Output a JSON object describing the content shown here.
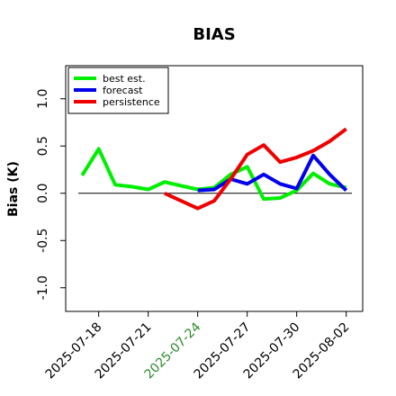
{
  "chart_data": {
    "type": "line",
    "title": "BIAS",
    "xlabel": "",
    "ylabel": "Bias (K)",
    "ylim": [
      -1.25,
      1.35
    ],
    "xlim": [
      "2025-07-16",
      "2025-08-03"
    ],
    "grid": false,
    "legend_position": "top-left",
    "yticks": [
      -1.0,
      -0.5,
      0.0,
      0.5,
      1.0
    ],
    "yticklabels": [
      "-1.0",
      "-0.5",
      "0.0",
      "0.5",
      "1.0"
    ],
    "xticks": [
      "2025-07-18",
      "2025-07-21",
      "2025-07-24",
      "2025-07-27",
      "2025-07-30",
      "2025-08-02"
    ],
    "xticklabels": [
      "2025-07-18",
      "2025-07-21",
      "2025-07-24",
      "2025-07-27",
      "2025-07-30",
      "2025-08-02"
    ],
    "xtick_colors": [
      "#000000",
      "#000000",
      "#2e8b2e",
      "#000000",
      "#000000",
      "#000000"
    ],
    "reference_line": 0.0,
    "series": [
      {
        "name": "best est.",
        "color": "#00ee00",
        "points": [
          [
            "2025-07-17",
            0.19
          ],
          [
            "2025-07-18",
            0.47
          ],
          [
            "2025-07-19",
            0.09
          ],
          [
            "2025-07-20",
            0.07
          ],
          [
            "2025-07-21",
            0.04
          ],
          [
            "2025-07-22",
            0.12
          ],
          [
            "2025-07-23",
            0.08
          ],
          [
            "2025-07-24",
            0.04
          ],
          [
            "2025-07-25",
            0.06
          ],
          [
            "2025-07-26",
            0.2
          ],
          [
            "2025-07-27",
            0.28
          ],
          [
            "2025-07-28",
            -0.06
          ],
          [
            "2025-07-29",
            -0.05
          ],
          [
            "2025-07-30",
            0.03
          ],
          [
            "2025-07-31",
            0.21
          ],
          [
            "2025-08-01",
            0.1
          ],
          [
            "2025-08-02",
            0.06
          ]
        ]
      },
      {
        "name": "forecast",
        "color": "#0000ee",
        "points": [
          [
            "2025-07-24",
            0.03
          ],
          [
            "2025-07-25",
            0.04
          ],
          [
            "2025-07-26",
            0.15
          ],
          [
            "2025-07-27",
            0.1
          ],
          [
            "2025-07-28",
            0.2
          ],
          [
            "2025-07-29",
            0.1
          ],
          [
            "2025-07-30",
            0.05
          ],
          [
            "2025-07-31",
            0.4
          ],
          [
            "2025-08-01",
            0.2
          ],
          [
            "2025-08-02",
            0.03
          ]
        ]
      },
      {
        "name": "persistence",
        "color": "#ee0000",
        "points": [
          [
            "2025-07-22",
            0.0
          ],
          [
            "2025-07-23",
            -0.08
          ],
          [
            "2025-07-24",
            -0.16
          ],
          [
            "2025-07-25",
            -0.08
          ],
          [
            "2025-07-26",
            0.15
          ],
          [
            "2025-07-27",
            0.41
          ],
          [
            "2025-07-28",
            0.51
          ],
          [
            "2025-07-29",
            0.33
          ],
          [
            "2025-07-30",
            0.38
          ],
          [
            "2025-07-31",
            0.45
          ],
          [
            "2025-08-01",
            0.55
          ],
          [
            "2025-08-02",
            0.68
          ]
        ]
      }
    ]
  }
}
